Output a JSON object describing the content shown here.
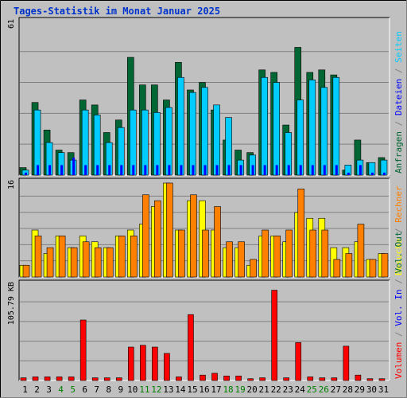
{
  "title": "Tages-Statistik im Monat Januar 2025",
  "colors": {
    "background": "#c0c0c0",
    "title": "#0033cc",
    "anfragen": "#006633",
    "dateien": "#0000ff",
    "seiten": "#00ccff",
    "besuche": "#ffff00",
    "rechner": "#ff8000",
    "volumen": "#ff0000",
    "weekend_label": "#008000",
    "grid": "#808080"
  },
  "chart_data": [
    {
      "type": "bar",
      "name": "hits-pages-files",
      "ymax_label": "61",
      "ylim": [
        0,
        61
      ],
      "grid": true,
      "right_legend": [
        {
          "text": "Anfragen",
          "color_key": "anfragen"
        },
        {
          "text": "/",
          "color_key": "grid"
        },
        {
          "text": "Dateien",
          "color_key": "dateien"
        },
        {
          "text": "/",
          "color_key": "grid"
        },
        {
          "text": "Seiten",
          "color_key": "seiten"
        }
      ],
      "series": [
        {
          "name": "Anfragen",
          "color_key": "anfragen",
          "values": [
            3,
            29,
            18,
            10,
            9,
            30,
            28,
            17,
            22,
            47,
            36,
            36,
            30,
            45,
            34,
            37,
            26,
            14,
            10,
            9,
            42,
            41,
            20,
            51,
            41,
            42,
            40,
            2,
            14,
            5,
            7
          ]
        },
        {
          "name": "Seiten",
          "color_key": "seiten",
          "values": [
            2,
            26,
            13,
            9,
            6,
            26,
            24,
            13,
            19,
            26,
            26,
            25,
            27,
            39,
            33,
            35,
            28,
            23,
            6,
            8,
            39,
            37,
            17,
            30,
            38,
            35,
            39,
            4,
            6,
            5,
            6
          ]
        },
        {
          "name": "Dateien",
          "color_key": "dateien",
          "values": [
            1,
            4,
            4,
            4,
            7,
            4,
            4,
            4,
            4,
            4,
            4,
            4,
            4,
            4,
            4,
            4,
            4,
            4,
            4,
            4,
            4,
            4,
            4,
            4,
            4,
            4,
            4,
            1,
            4,
            1,
            1
          ]
        }
      ]
    },
    {
      "type": "bar",
      "name": "visits-sites",
      "ymax_label": "16",
      "ylim": [
        0,
        16
      ],
      "grid": true,
      "right_legend": [
        {
          "text": "Besuche",
          "color_key": "besuche"
        },
        {
          "text": "/",
          "color_key": "grid"
        },
        {
          "text": "Rechner",
          "color_key": "rechner"
        }
      ],
      "series": [
        {
          "name": "Besuche",
          "color_key": "besuche",
          "values": [
            2,
            8,
            4,
            7,
            5,
            7,
            6,
            5,
            7,
            8,
            9,
            12,
            16,
            8,
            13,
            13,
            8,
            5,
            5,
            2,
            7,
            7,
            6,
            11,
            10,
            10,
            5,
            5,
            6,
            3,
            4
          ]
        },
        {
          "name": "Rechner",
          "color_key": "rechner",
          "values": [
            2,
            7,
            5,
            7,
            5,
            6,
            5,
            5,
            7,
            7,
            14,
            13,
            16,
            8,
            14,
            8,
            12,
            6,
            6,
            3,
            8,
            7,
            8,
            15,
            8,
            8,
            3,
            4,
            9,
            3,
            4
          ]
        }
      ]
    },
    {
      "type": "bar",
      "name": "volume",
      "ymax_label": "105.79 KB",
      "ylim": [
        0,
        105.79
      ],
      "grid": true,
      "right_legend": [
        {
          "text": "Volumen",
          "color_key": "volumen"
        },
        {
          "text": "/",
          "color_key": "grid"
        },
        {
          "text": "Vol. In",
          "color_key": "dateien"
        },
        {
          "text": "/",
          "color_key": "grid"
        },
        {
          "text": "Vol. Out",
          "color_key": "anfragen"
        }
      ],
      "series": [
        {
          "name": "Volumen",
          "color_key": "volumen",
          "values": [
            3,
            4,
            4,
            4,
            4,
            67,
            3,
            3,
            3,
            37,
            39,
            37,
            30,
            4,
            73,
            6,
            8,
            5,
            5,
            2,
            3,
            100,
            3,
            42,
            4,
            3,
            3,
            38,
            6,
            2,
            2
          ]
        }
      ]
    }
  ],
  "days": [
    "1",
    "2",
    "3",
    "4",
    "5",
    "6",
    "7",
    "8",
    "9",
    "10",
    "11",
    "12",
    "13",
    "14",
    "15",
    "16",
    "17",
    "18",
    "19",
    "20",
    "21",
    "22",
    "23",
    "24",
    "25",
    "26",
    "27",
    "28",
    "29",
    "30",
    "31"
  ],
  "weekend_days": [
    "4",
    "5",
    "11",
    "12",
    "18",
    "19",
    "25",
    "26"
  ]
}
